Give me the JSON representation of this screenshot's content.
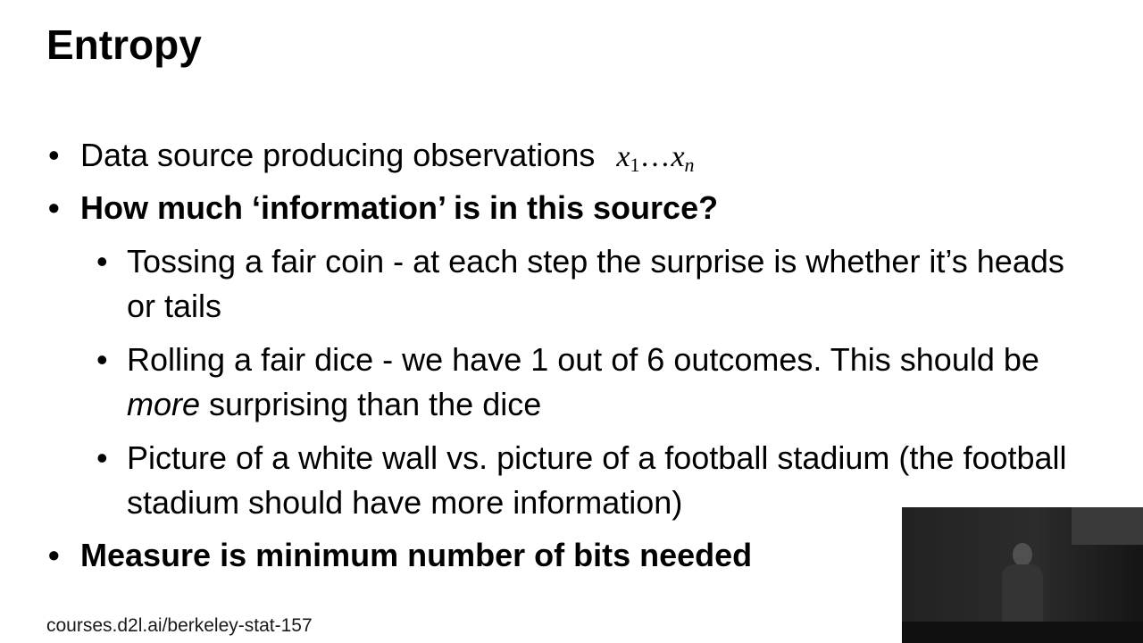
{
  "slide": {
    "title": "Entropy",
    "bullet_char": "•",
    "bullets": [
      {
        "text": "Data source producing observations",
        "math": {
          "first": "x",
          "first_sub": "1",
          "dots": "…",
          "last": "x",
          "last_sub": "n"
        }
      },
      {
        "text": "How much ‘information’ is in this source?"
      },
      {
        "text": "Tossing a fair coin - at each step the surprise is whether it’s heads or tails"
      },
      {
        "text_before": "Rolling a fair dice - we have 1 out of 6 outcomes. This should be ",
        "emphasis": "more",
        "text_after": " surprising than the dice"
      },
      {
        "text": "Picture of a white wall vs. picture of a football stadium (the football stadium should have more information)"
      },
      {
        "text": "Measure is minimum number of bits needed"
      }
    ],
    "footer": "courses.d2l.ai/berkeley-stat-157"
  }
}
